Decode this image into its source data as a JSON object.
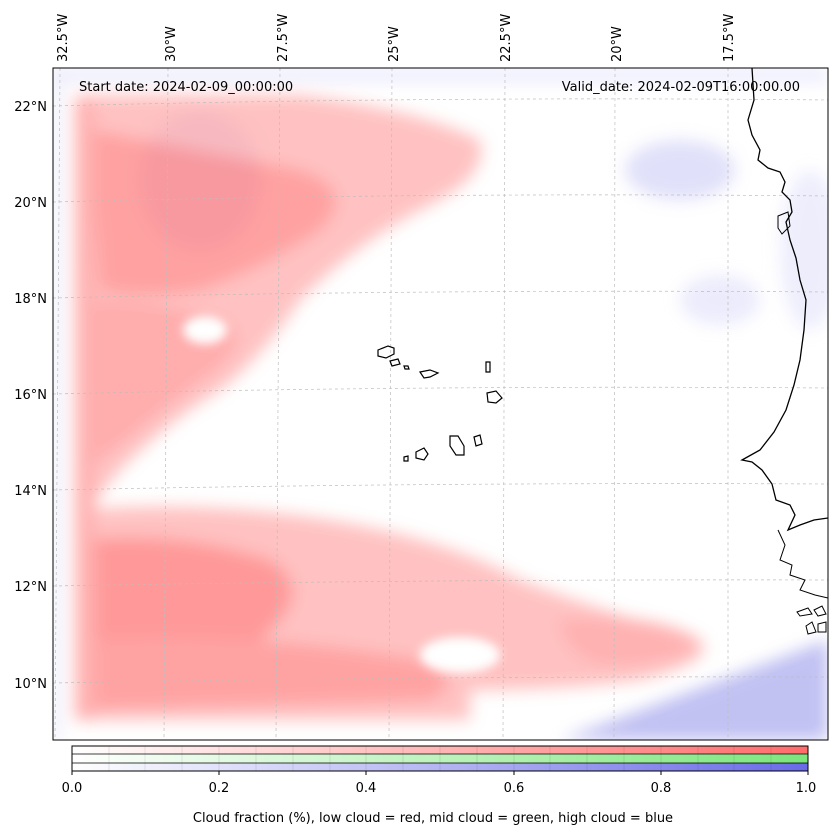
{
  "map": {
    "start_date_label": "Start date: 2024-02-09_00:00:00",
    "valid_date_label": "Valid_date: 2024-02-09T16:00:00.00",
    "lon_ticks": [
      "32.5°W",
      "30°W",
      "27.5°W",
      "25°W",
      "22.5°W",
      "20°W",
      "17.5°W"
    ],
    "lat_ticks": [
      "22°N",
      "20°N",
      "18°N",
      "16°N",
      "14°N",
      "12°N",
      "10°N"
    ],
    "extent": {
      "lon_min": -32.7,
      "lon_max": -15.2,
      "lat_min": 8.9,
      "lat_max": 22.8
    }
  },
  "colorbar": {
    "ticks": [
      "0.0",
      "0.2",
      "0.4",
      "0.6",
      "0.8",
      "1.0"
    ],
    "label": "Cloud fraction (%), low cloud = red, mid cloud = green, high cloud = blue",
    "colors": {
      "low": "#ff6b6b",
      "mid": "#7be67b",
      "high": "#6a6ae8"
    }
  }
}
